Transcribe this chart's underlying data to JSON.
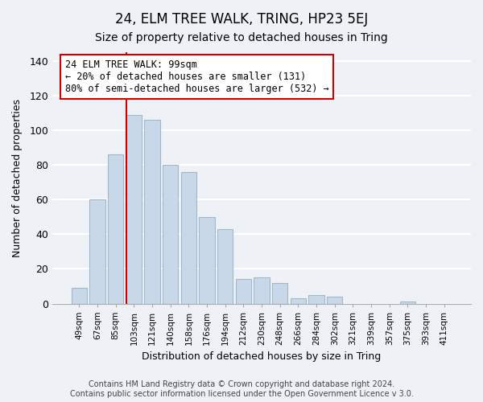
{
  "title": "24, ELM TREE WALK, TRING, HP23 5EJ",
  "subtitle": "Size of property relative to detached houses in Tring",
  "xlabel": "Distribution of detached houses by size in Tring",
  "ylabel": "Number of detached properties",
  "bar_labels": [
    "49sqm",
    "67sqm",
    "85sqm",
    "103sqm",
    "121sqm",
    "140sqm",
    "158sqm",
    "176sqm",
    "194sqm",
    "212sqm",
    "230sqm",
    "248sqm",
    "266sqm",
    "284sqm",
    "302sqm",
    "321sqm",
    "339sqm",
    "357sqm",
    "375sqm",
    "393sqm",
    "411sqm"
  ],
  "bar_values": [
    9,
    60,
    86,
    109,
    106,
    80,
    76,
    50,
    43,
    14,
    15,
    12,
    3,
    5,
    4,
    0,
    0,
    0,
    1,
    0,
    0
  ],
  "bar_color": "#c8d8e8",
  "bar_edge_color": "#a0b8cc",
  "vline_color": "#cc0000",
  "annotation_line1": "24 ELM TREE WALK: 99sqm",
  "annotation_line2": "← 20% of detached houses are smaller (131)",
  "annotation_line3": "80% of semi-detached houses are larger (532) →",
  "annotation_box_color": "#ffffff",
  "annotation_box_edge": "#cc0000",
  "ylim": [
    0,
    145
  ],
  "yticks": [
    0,
    20,
    40,
    60,
    80,
    100,
    120,
    140
  ],
  "footer": "Contains HM Land Registry data © Crown copyright and database right 2024.\nContains public sector information licensed under the Open Government Licence v 3.0.",
  "bg_color": "#eef2f6",
  "plot_bg_color": "#eef2f6",
  "grid_color": "#ffffff",
  "title_fontsize": 12,
  "subtitle_fontsize": 10,
  "footer_fontsize": 7,
  "annotation_fontsize": 8.5
}
